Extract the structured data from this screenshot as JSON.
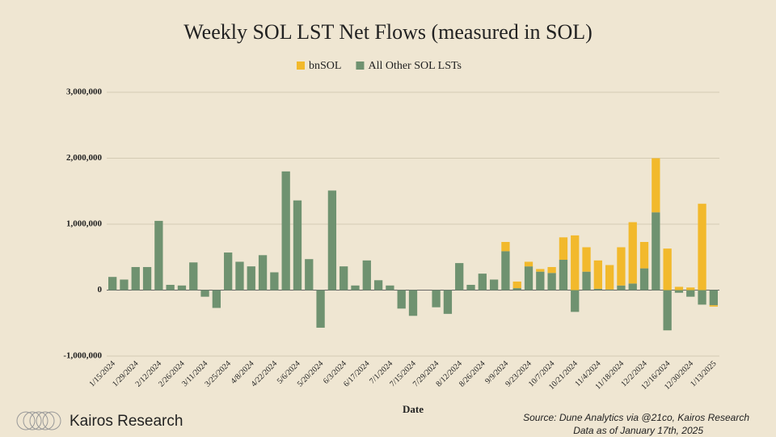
{
  "chart_data": {
    "type": "bar",
    "stacked": true,
    "title": "Weekly SOL LST Net Flows (measured in SOL)",
    "x_label": "Date",
    "categories": [
      "1/15/2024",
      null,
      "1/29/2024",
      null,
      "2/12/2024",
      null,
      "2/26/2024",
      null,
      "3/11/2024",
      null,
      "3/25/2024",
      null,
      "4/8/2024",
      null,
      "4/22/2024",
      null,
      "5/6/2024",
      null,
      "5/20/2024",
      null,
      "6/3/2024",
      null,
      "6/17/2024",
      null,
      "7/1/2024",
      null,
      "7/15/2024",
      null,
      "7/29/2024",
      null,
      "8/12/2024",
      null,
      "8/26/2024",
      null,
      "9/9/2024",
      null,
      "9/23/2024",
      null,
      "10/7/2024",
      null,
      "10/21/2024",
      null,
      "11/4/2024",
      null,
      "11/18/2024",
      null,
      "12/2/2024",
      null,
      "12/16/2024",
      null,
      "12/30/2024",
      null,
      "1/13/2025"
    ],
    "series": [
      {
        "name": "All Other SOL LSTs",
        "color": "#6f9270",
        "values": [
          200000,
          160000,
          350000,
          350000,
          1050000,
          80000,
          70000,
          420000,
          -100000,
          -270000,
          570000,
          430000,
          360000,
          530000,
          270000,
          1800000,
          1360000,
          470000,
          -570000,
          1510000,
          360000,
          70000,
          450000,
          150000,
          70000,
          -280000,
          -390000,
          0,
          -260000,
          -360000,
          410000,
          80000,
          250000,
          160000,
          590000,
          30000,
          360000,
          280000,
          260000,
          460000,
          -330000,
          280000,
          20000,
          10000,
          70000,
          100000,
          330000,
          1180000,
          -610000,
          -40000,
          -100000,
          -220000,
          -230000
        ]
      },
      {
        "name": "bnSOL",
        "color": "#f2b92c",
        "values": [
          0,
          0,
          0,
          0,
          0,
          0,
          0,
          0,
          0,
          0,
          0,
          0,
          0,
          0,
          0,
          0,
          0,
          0,
          0,
          0,
          0,
          0,
          0,
          0,
          0,
          0,
          0,
          0,
          0,
          0,
          0,
          0,
          0,
          0,
          140000,
          100000,
          70000,
          40000,
          90000,
          340000,
          830000,
          370000,
          430000,
          370000,
          580000,
          930000,
          400000,
          820000,
          630000,
          50000,
          40000,
          1310000,
          -20000
        ]
      }
    ],
    "legend_order": [
      1,
      0
    ],
    "ylim": [
      -1000000,
      3000000
    ],
    "yticks": [
      {
        "value": -1000000,
        "label": "-1,000,000"
      },
      0,
      {
        "value": 1000000,
        "label": "1,000,000"
      },
      {
        "value": 2000000,
        "label": "2,000,000"
      },
      {
        "value": 3000000,
        "label": "3,000,000"
      }
    ],
    "grid": true
  },
  "footer": {
    "brand": "Kairos Research",
    "source": "Source: Dune Analytics via @21co, Kairos Research",
    "note": "Data as of January 17th, 2025"
  }
}
